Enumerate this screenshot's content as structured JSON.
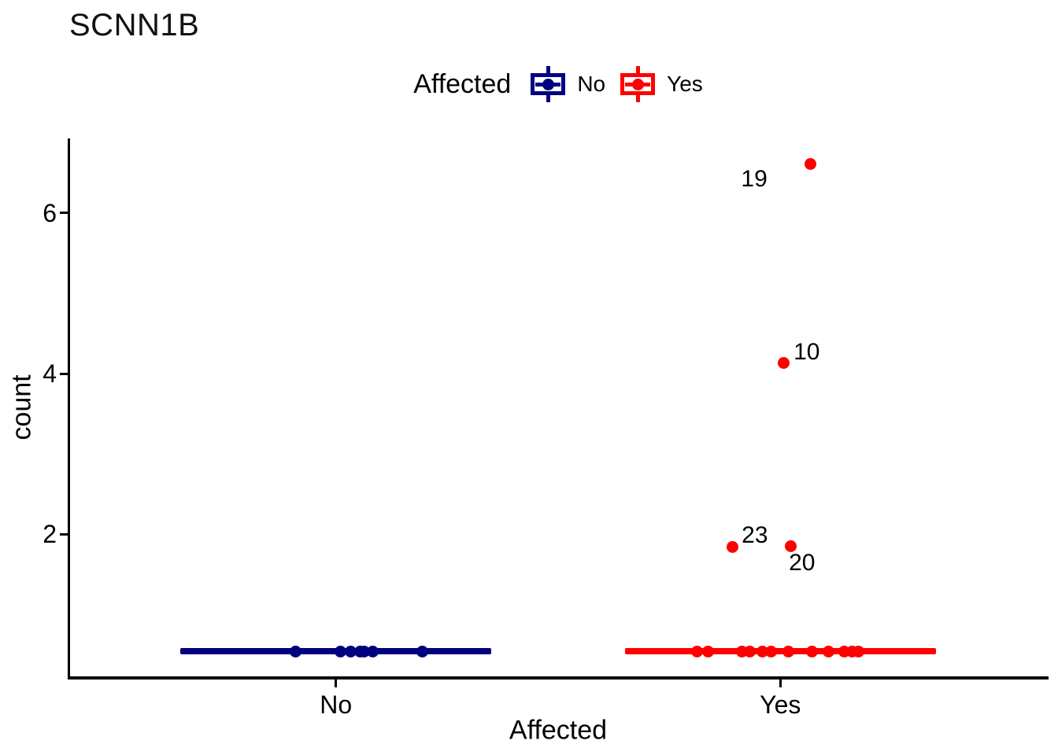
{
  "page": {
    "background": "#FFFFFF"
  },
  "chart": {
    "title": "SCNN1B",
    "legend": {
      "title": "Affected",
      "position": "top",
      "items": [
        {
          "label": "No",
          "color": "#000080"
        },
        {
          "label": "Yes",
          "color": "#FF0000"
        }
      ]
    },
    "y_axis": {
      "title": "count",
      "tick_labels": [
        "2",
        "4",
        "6"
      ]
    },
    "x_axis": {
      "title": "Affected",
      "tick_labels": [
        "No",
        "Yes"
      ]
    }
  },
  "chart_data": {
    "type": "scatter",
    "subtype": "collapsed-boxplot-with-jittered-points",
    "title": "SCNN1B",
    "xlabel": "Affected",
    "ylabel": "count",
    "categories": [
      "No",
      "Yes"
    ],
    "category_positions": [
      1,
      2
    ],
    "xlim": [
      0.4,
      2.6
    ],
    "ylim": [
      0.22,
      6.93
    ],
    "y_ticks": [
      2,
      4,
      6
    ],
    "grid": false,
    "legend_position": "top",
    "series": [
      {
        "name": "No",
        "color": "#000080",
        "x_center": 1,
        "median": 0.54,
        "box_width": 0.7,
        "points": [
          {
            "x": 0.91,
            "y": 0.54
          },
          {
            "x": 1.011,
            "y": 0.54
          },
          {
            "x": 1.034,
            "y": 0.54
          },
          {
            "x": 1.054,
            "y": 0.54
          },
          {
            "x": 1.064,
            "y": 0.54
          },
          {
            "x": 1.082,
            "y": 0.54
          },
          {
            "x": 1.194,
            "y": 0.54
          }
        ],
        "labeled_points": []
      },
      {
        "name": "Yes",
        "color": "#FF0000",
        "x_center": 2,
        "median": 0.54,
        "box_width": 0.7,
        "points": [
          {
            "x": 1.812,
            "y": 0.54
          },
          {
            "x": 1.838,
            "y": 0.54
          },
          {
            "x": 1.914,
            "y": 0.54
          },
          {
            "x": 1.932,
            "y": 0.54
          },
          {
            "x": 1.959,
            "y": 0.54
          },
          {
            "x": 1.98,
            "y": 0.54
          },
          {
            "x": 2.019,
            "y": 0.54
          },
          {
            "x": 2.072,
            "y": 0.54
          },
          {
            "x": 2.109,
            "y": 0.54
          },
          {
            "x": 2.143,
            "y": 0.54
          },
          {
            "x": 2.161,
            "y": 0.54
          },
          {
            "x": 2.175,
            "y": 0.54
          }
        ],
        "labeled_points": [
          {
            "label": "23",
            "x": 1.893,
            "y": 1.84,
            "label_dx": 28,
            "label_dy": -15
          },
          {
            "label": "20",
            "x": 2.024,
            "y": 1.85,
            "label_dx": 14,
            "label_dy": 21
          },
          {
            "label": "10",
            "x": 2.008,
            "y": 4.13,
            "label_dx": 29,
            "label_dy": -14
          },
          {
            "label": "19",
            "x": 2.067,
            "y": 6.61,
            "label_dx": -71,
            "label_dy": 19
          }
        ]
      }
    ]
  }
}
